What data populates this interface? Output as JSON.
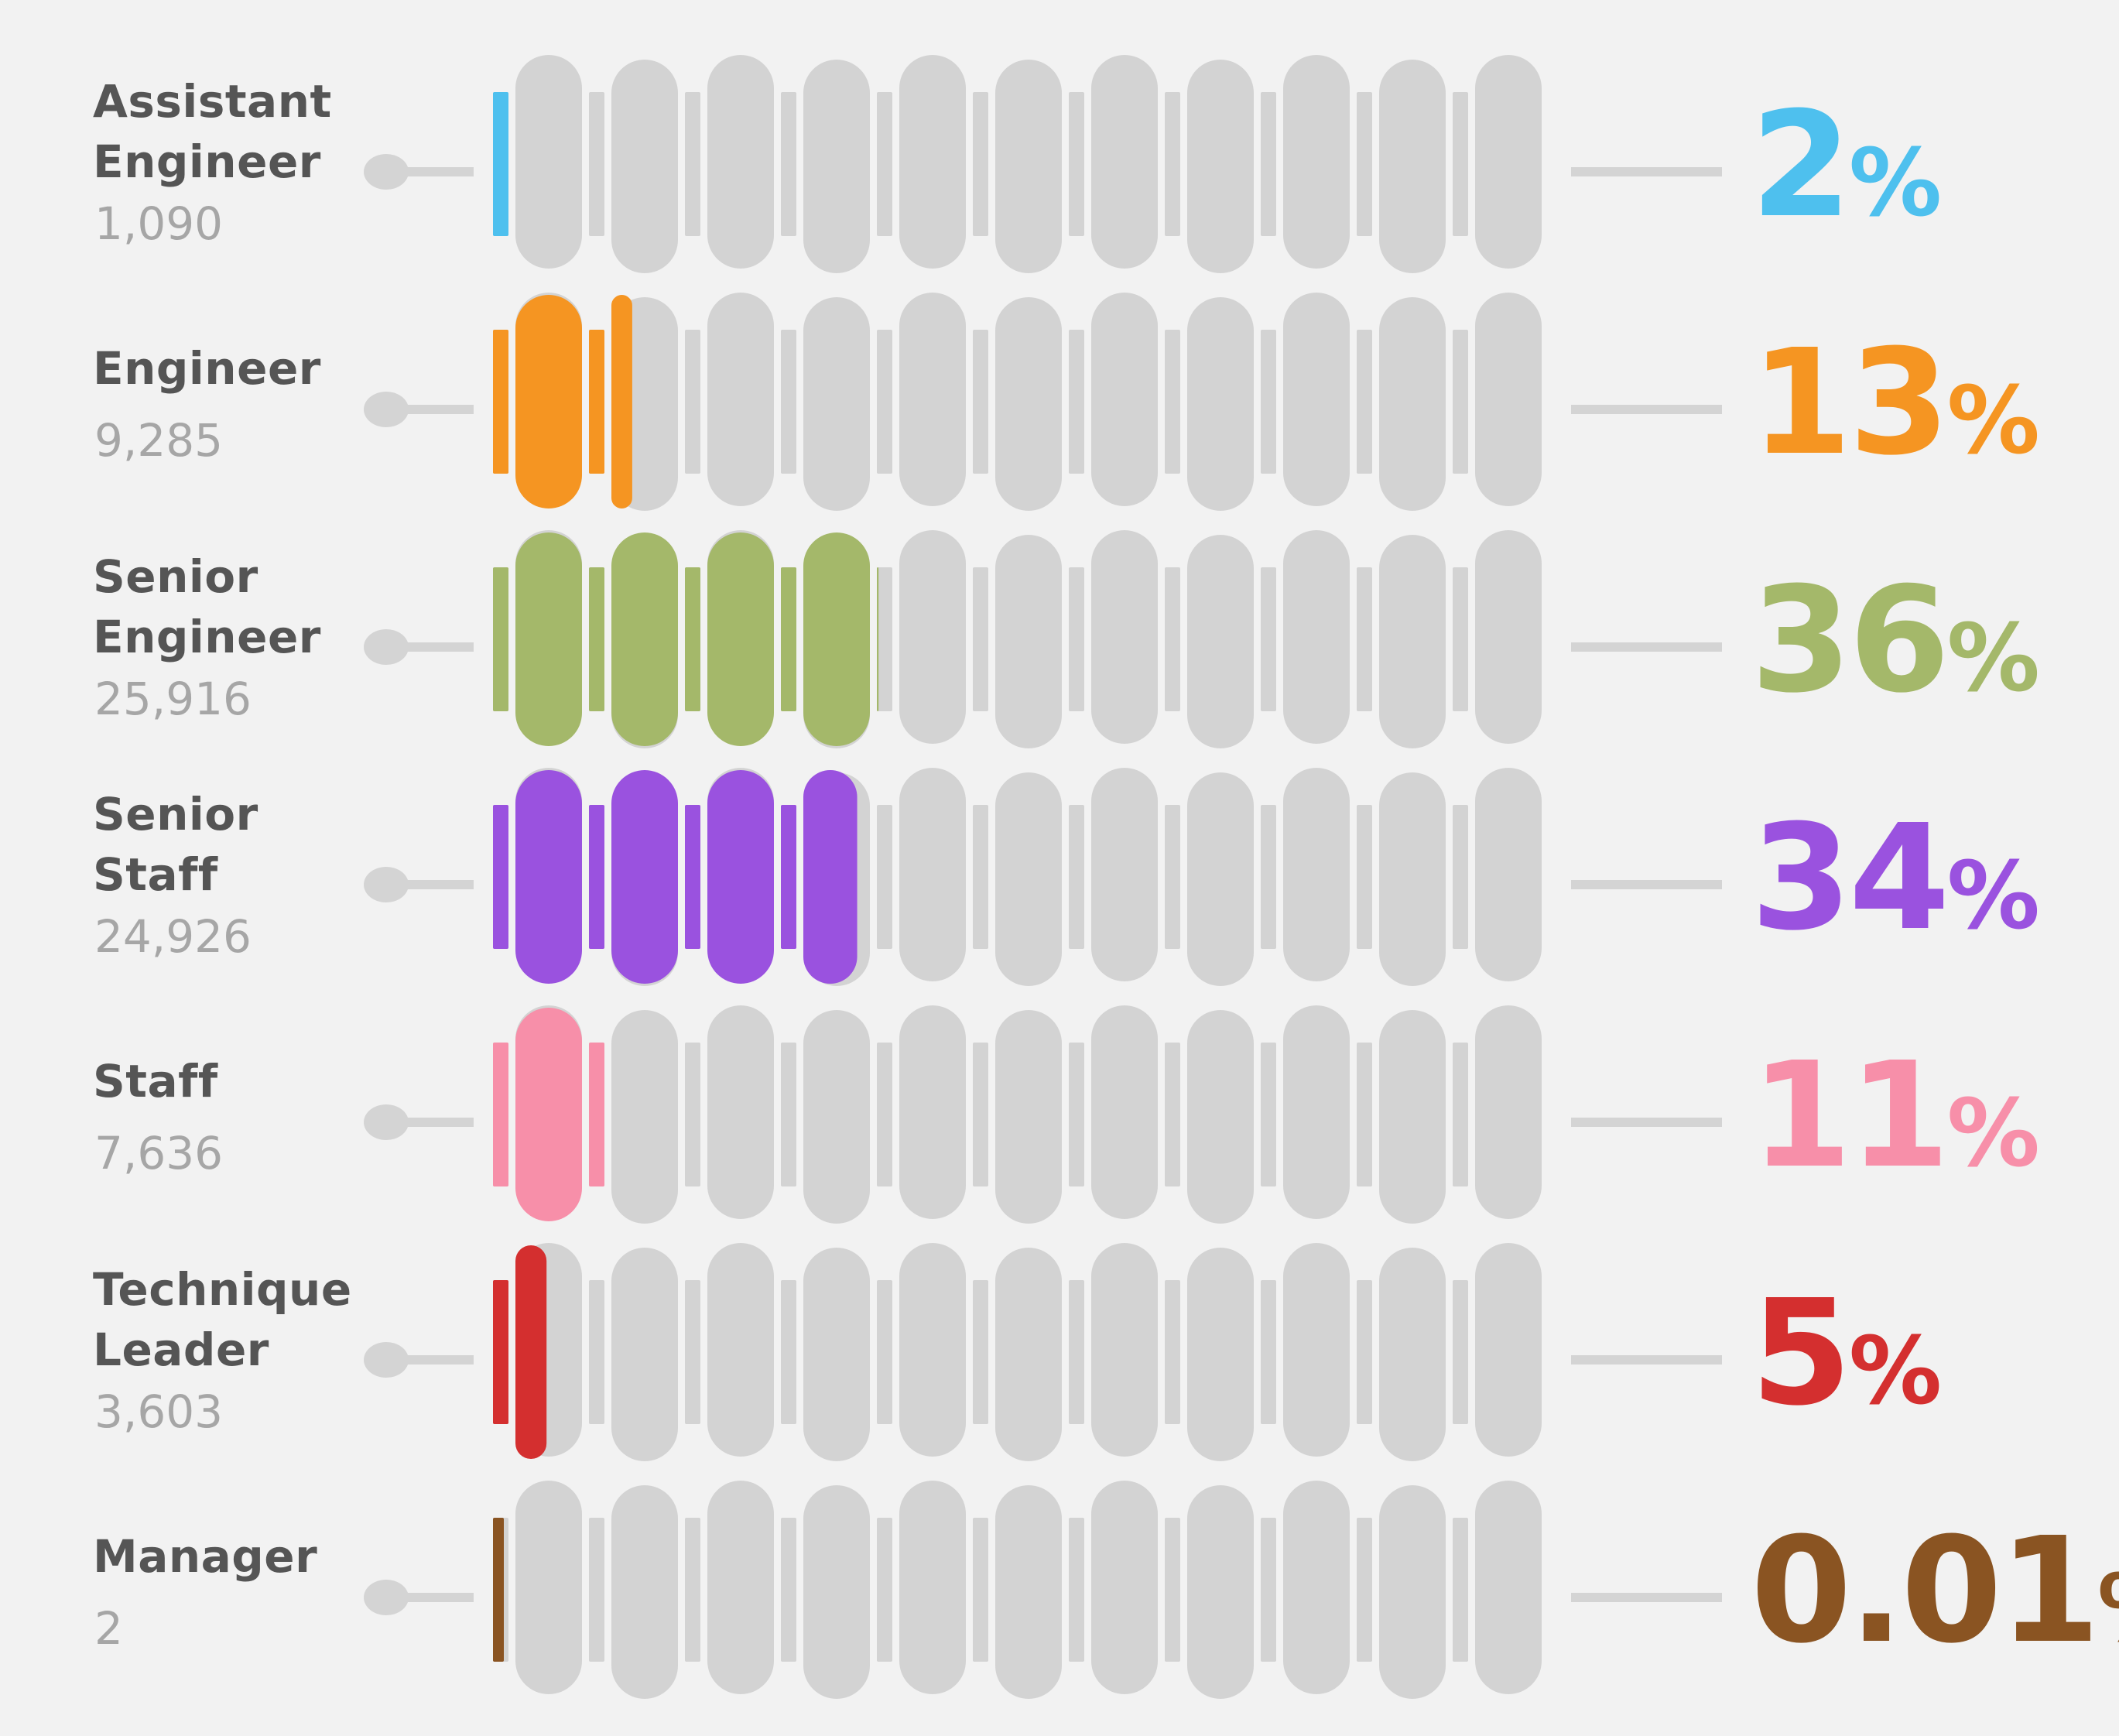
{
  "chart_data": {
    "type": "bar",
    "categories": [
      "Assistant Engineer",
      "Engineer",
      "Senior Engineer",
      "Senior Staff",
      "Staff",
      "Technique Leader",
      "Manager"
    ],
    "label_lines": [
      [
        "Assistant",
        "Engineer"
      ],
      [
        "Engineer"
      ],
      [
        "Senior",
        "Engineer"
      ],
      [
        "Senior",
        "Staff"
      ],
      [
        "Staff"
      ],
      [
        "Technique",
        "Leader"
      ],
      [
        "Manager"
      ]
    ],
    "counts": [
      "1,090",
      "9,285",
      "25,916",
      "24,926",
      "7,636",
      "3,603",
      "2"
    ],
    "values": [
      2,
      13,
      36,
      34,
      11,
      5,
      0.01
    ],
    "percent_labels": [
      "2",
      "13",
      "36",
      "34",
      "11",
      "5",
      "0.01"
    ],
    "percent_sign": "%",
    "colors": [
      "#4ec0ee",
      "#f59522",
      "#a4b86a",
      "#9a52df",
      "#f78fa9",
      "#d42f2f",
      "#8a5422"
    ],
    "track_color": "#d3d3d3",
    "ylim": [
      0,
      100
    ],
    "grid": false,
    "legend": "none"
  }
}
